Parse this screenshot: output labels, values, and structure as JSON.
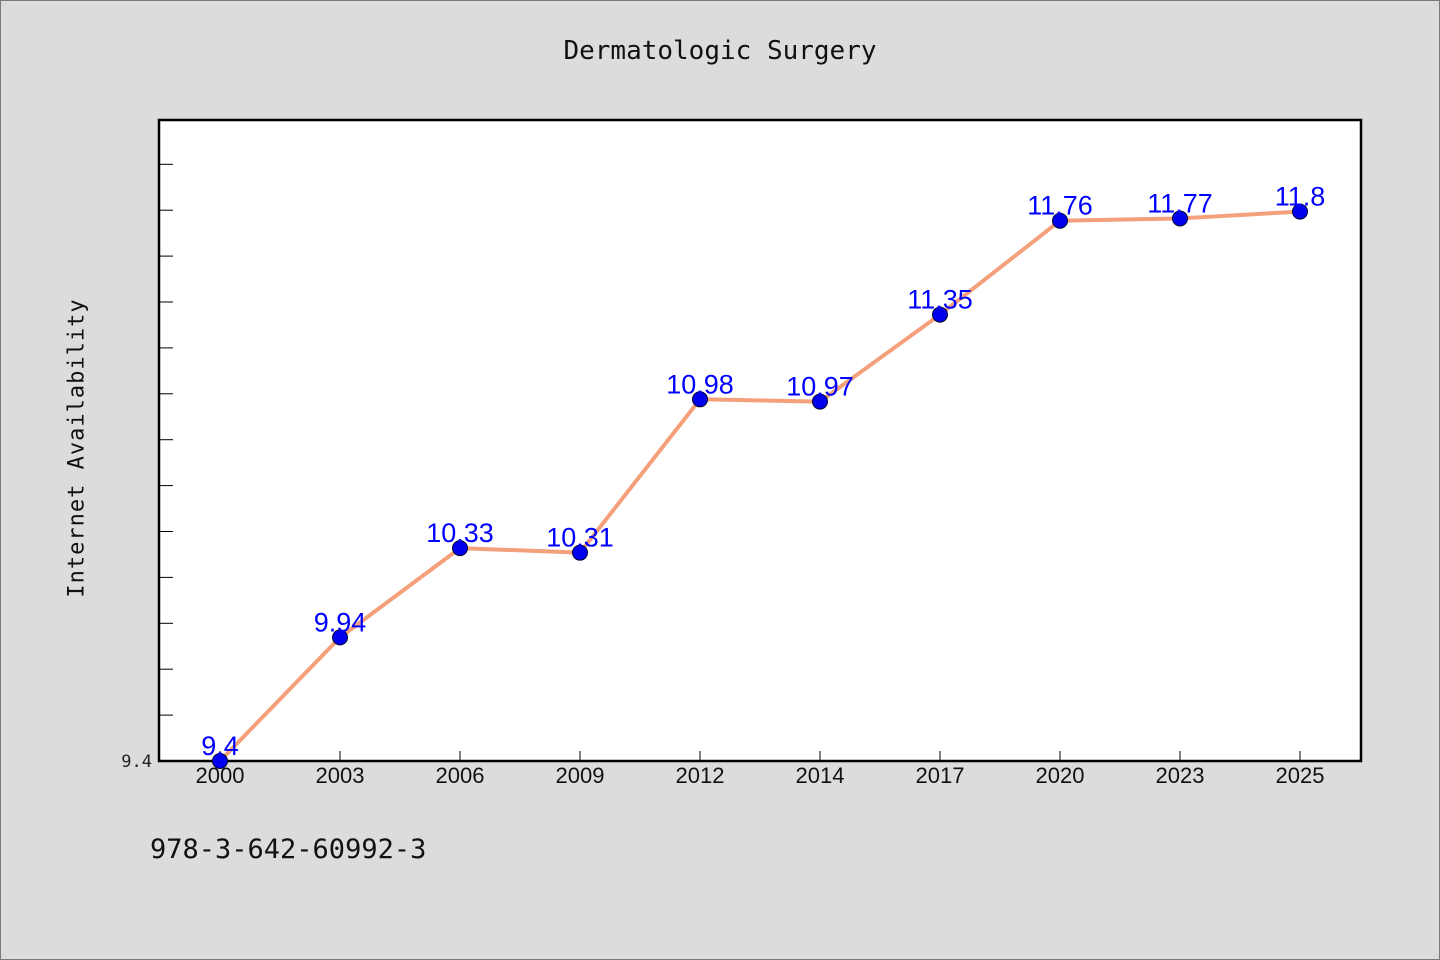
{
  "chart_data": {
    "type": "line",
    "title": "Dermatologic Surgery",
    "xlabel": "",
    "ylabel": "Internet Availability",
    "categories": [
      "2000",
      "2003",
      "2006",
      "2009",
      "2012",
      "2014",
      "2017",
      "2020",
      "2023",
      "2025"
    ],
    "values": [
      9.4,
      9.94,
      10.33,
      10.31,
      10.98,
      10.97,
      11.35,
      11.76,
      11.77,
      11.8
    ],
    "data_labels": [
      "9.4",
      "9.94",
      "10.33",
      "10.31",
      "10.98",
      "10.97",
      "11.35",
      "11.76",
      "11.77",
      "11.8"
    ],
    "y_tick_labels": [
      "9.4"
    ],
    "ylim": [
      9.4,
      12.2
    ],
    "grid": false,
    "line_color": "#f4a07a",
    "marker_color": "#0000ee",
    "label_color": "#0000ff"
  },
  "footnote": "978-3-642-60992-3"
}
